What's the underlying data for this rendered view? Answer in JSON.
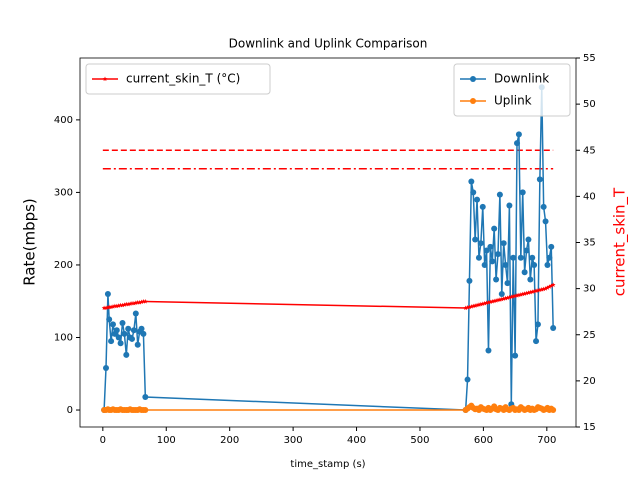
{
  "chart_data": {
    "type": "line",
    "title": "Downlink and Uplink Comparison",
    "xlabel": "time_stamp (s)",
    "ylabel": "Rate(mbps)",
    "y2label": "current_skin_T",
    "x": [
      2,
      5,
      8,
      10,
      13,
      16,
      19,
      22,
      25,
      28,
      31,
      34,
      37,
      40,
      43,
      46,
      49,
      52,
      55,
      58,
      61,
      64,
      67,
      572,
      575,
      578,
      581,
      584,
      587,
      590,
      593,
      596,
      599,
      602,
      605,
      608,
      611,
      614,
      617,
      620,
      623,
      626,
      629,
      632,
      635,
      638,
      641,
      644,
      647,
      650,
      653,
      656,
      659,
      662,
      665,
      668,
      671,
      674,
      677,
      680,
      683,
      686,
      689,
      692,
      695,
      698,
      701,
      704,
      707,
      710
    ],
    "series": [
      {
        "name": "Downlink",
        "color": "#1f77b4",
        "marker": "circle",
        "axis": "y",
        "values": [
          0,
          58,
          160,
          125,
          95,
          118,
          105,
          110,
          100,
          92,
          120,
          105,
          76,
          112,
          100,
          98,
          110,
          133,
          90,
          108,
          112,
          105,
          18,
          0,
          42,
          178,
          315,
          300,
          235,
          290,
          210,
          230,
          280,
          200,
          220,
          82,
          225,
          205,
          250,
          180,
          215,
          297,
          160,
          230,
          200,
          175,
          282,
          8,
          210,
          75,
          368,
          380,
          210,
          300,
          190,
          220,
          235,
          180,
          210,
          200,
          95,
          118,
          318,
          445,
          280,
          260,
          200,
          210,
          225,
          113
        ]
      },
      {
        "name": "Uplink",
        "color": "#ff7f0e",
        "marker": "circle",
        "axis": "y",
        "values": [
          0,
          0,
          1,
          0,
          0,
          1,
          0,
          0,
          0,
          1,
          0,
          0,
          0,
          0,
          1,
          0,
          0,
          0,
          0,
          1,
          0,
          0,
          0,
          0,
          2,
          4,
          6,
          3,
          1,
          2,
          0,
          4,
          2,
          1,
          0,
          3,
          0,
          2,
          5,
          1,
          0,
          3,
          2,
          0,
          4,
          1,
          0,
          2,
          3,
          0,
          1,
          0,
          4,
          2,
          0,
          1,
          3,
          0,
          2,
          0,
          1,
          4,
          3,
          2,
          0,
          1,
          3,
          0,
          2,
          0
        ]
      },
      {
        "name": "current_skin_T (°C)",
        "color": "#ff0000",
        "marker": "star",
        "axis": "y2",
        "values": [
          27.9,
          27.9,
          27.95,
          28,
          28,
          28.05,
          28.1,
          28.1,
          28.15,
          28.2,
          28.2,
          28.25,
          28.3,
          28.3,
          28.35,
          28.4,
          28.4,
          28.45,
          28.5,
          28.5,
          28.55,
          28.6,
          28.6,
          27.9,
          27.95,
          28.0,
          28.05,
          28.1,
          28.15,
          28.2,
          28.25,
          28.3,
          28.35,
          28.4,
          28.45,
          28.5,
          28.55,
          28.6,
          28.65,
          28.7,
          28.75,
          28.8,
          28.85,
          28.9,
          28.95,
          29.0,
          29.05,
          29.1,
          29.15,
          29.2,
          29.25,
          29.3,
          29.35,
          29.4,
          29.45,
          29.5,
          29.55,
          29.6,
          29.65,
          29.7,
          29.75,
          29.8,
          29.85,
          29.9,
          29.95,
          30.0,
          30.1,
          30.2,
          30.3,
          30.4
        ]
      }
    ],
    "reference_lines": [
      {
        "axis": "y2",
        "value": 45,
        "x": [
          0,
          710
        ],
        "color": "#ff0000",
        "style": "dashed"
      },
      {
        "axis": "y2",
        "value": 43,
        "x": [
          0,
          710
        ],
        "color": "#ff0000",
        "style": "dashdot"
      }
    ],
    "xlim": [
      -36,
      746
    ],
    "xticks": [
      0,
      100,
      200,
      300,
      400,
      500,
      600,
      700
    ],
    "ylim": [
      -23.4,
      485.3
    ],
    "yticks": [
      0,
      100,
      200,
      300,
      400
    ],
    "y2lim": [
      15,
      55
    ],
    "y2ticks": [
      15,
      20,
      25,
      30,
      35,
      40,
      45,
      50,
      55
    ],
    "legend": {
      "y": "upper right",
      "y2": "upper left"
    }
  }
}
